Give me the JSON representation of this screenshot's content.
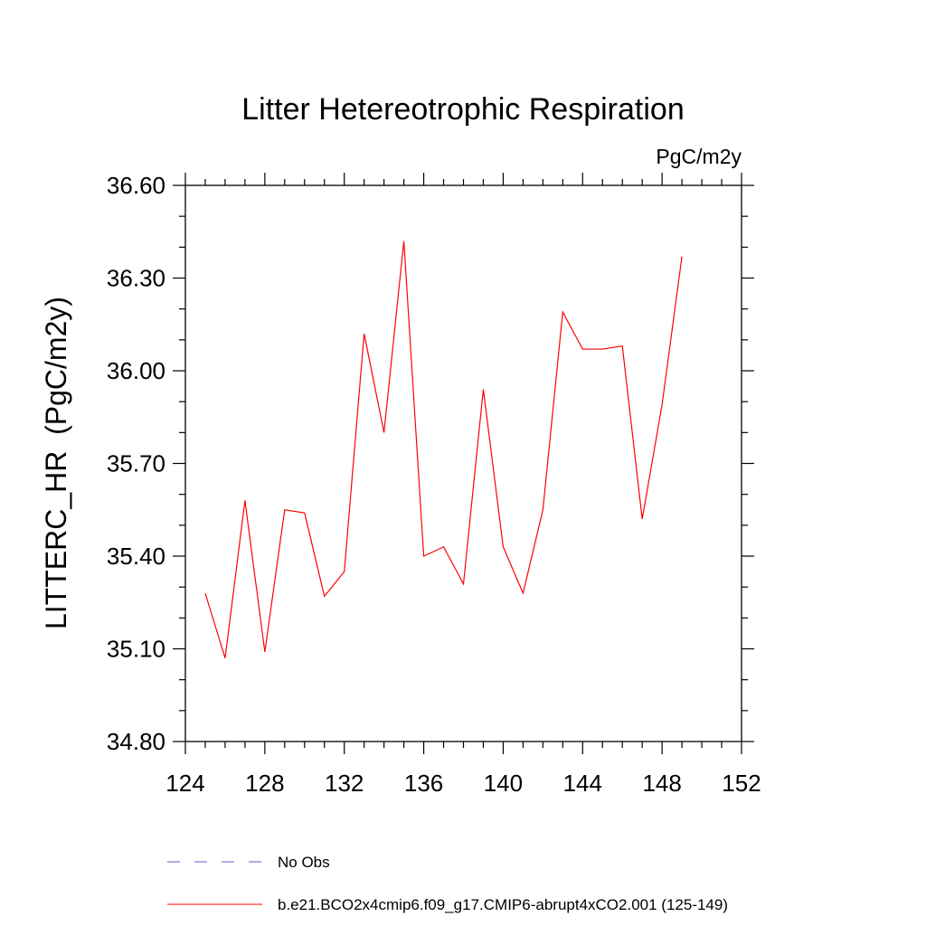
{
  "chart_data": {
    "type": "line",
    "title": "Litter Hetereotrophic Respiration",
    "units_label": "PgC/m2y",
    "xlabel": "",
    "ylabel": "LITTERC_HR  (PgC/m2y)",
    "xlim": [
      124,
      152
    ],
    "ylim": [
      34.8,
      36.6
    ],
    "x_ticks": [
      124,
      128,
      132,
      136,
      140,
      144,
      148,
      152
    ],
    "x_tick_labels": [
      "124",
      "128",
      "132",
      "136",
      "140",
      "144",
      "148",
      "152"
    ],
    "y_ticks": [
      34.8,
      35.1,
      35.4,
      35.7,
      36.0,
      36.3,
      36.6
    ],
    "y_tick_labels": [
      "34.80",
      "35.10",
      "35.40",
      "35.70",
      "36.00",
      "36.30",
      "36.60"
    ],
    "series": [
      {
        "name": "b.e21.BCO2x4cmip6.f09_g17.CMIP6-abrupt4xCO2.001 (125-149)",
        "color": "#ff0000",
        "dash": "solid",
        "x": [
          125,
          126,
          127,
          128,
          129,
          130,
          131,
          132,
          133,
          134,
          135,
          136,
          137,
          138,
          139,
          140,
          141,
          142,
          143,
          144,
          145,
          146,
          147,
          148,
          149
        ],
        "y": [
          35.28,
          35.07,
          35.58,
          35.09,
          35.55,
          35.54,
          35.27,
          35.35,
          36.12,
          35.8,
          36.42,
          35.4,
          35.43,
          35.31,
          35.94,
          35.43,
          35.28,
          35.55,
          36.19,
          36.07,
          36.07,
          36.08,
          35.52,
          35.89,
          36.37
        ]
      }
    ],
    "legend": [
      {
        "label": "No Obs",
        "color": "#6a5acd",
        "dash": "dashed"
      },
      {
        "label": "b.e21.BCO2x4cmip6.f09_g17.CMIP6-abrupt4xCO2.001 (125-149)",
        "color": "#ff0000",
        "dash": "solid"
      }
    ],
    "legend_position": "bottom"
  }
}
